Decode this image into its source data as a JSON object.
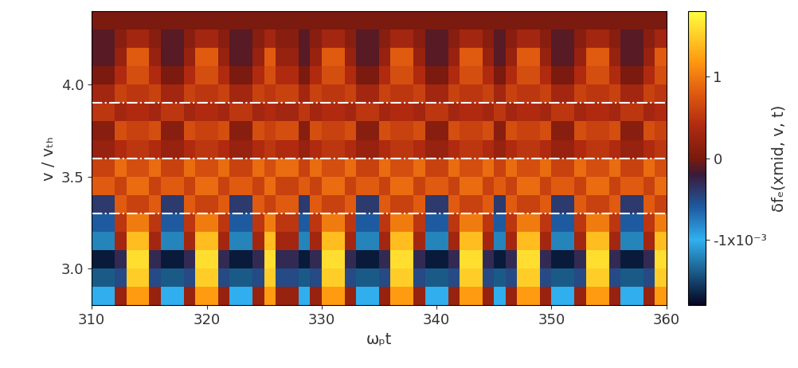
{
  "chart_data": {
    "type": "heatmap",
    "x_label": "ωₚt",
    "y_label": "v / vₜₕ",
    "xlim": [
      310,
      360
    ],
    "ylim": [
      2.8,
      4.4
    ],
    "xticks": [
      310,
      320,
      330,
      340,
      350,
      360
    ],
    "yticks": [
      {
        "value": 3.0,
        "label": "3.0"
      },
      {
        "value": 3.5,
        "label": "3.5"
      },
      {
        "value": 4.0,
        "label": "4.0"
      }
    ],
    "x_edges": [
      310,
      311,
      312,
      313,
      314,
      315,
      316,
      317,
      318,
      319,
      320,
      321,
      322,
      323,
      324,
      325,
      326,
      327,
      328,
      329,
      330,
      331,
      332,
      333,
      334,
      335,
      336,
      337,
      338,
      339,
      340,
      341,
      342,
      343,
      344,
      345,
      346,
      347,
      348,
      349,
      350,
      351,
      352,
      353,
      354,
      355,
      356,
      357,
      358,
      359,
      360
    ],
    "y_edges": [
      2.8,
      2.9,
      3.0,
      3.1,
      3.2,
      3.3,
      3.4,
      3.5,
      3.6,
      3.7,
      3.8,
      3.9,
      4.0,
      4.1,
      4.2,
      4.3,
      4.4
    ],
    "cells": [
      [
        -0.001,
        -0.001,
        0.0002,
        0.0012,
        0.0012,
        0.0002,
        -0.001,
        -0.001,
        0.0002,
        0.0012,
        0.0012,
        0.0002,
        -0.001,
        -0.001,
        0.0002,
        0.0012,
        0.0002,
        0.0002,
        -0.001,
        0.0002,
        0.0012,
        0.0012,
        0.0002,
        -0.001,
        -0.001,
        0.0002,
        0.0012,
        0.0012,
        0.0002,
        -0.001,
        -0.001,
        0.0002,
        0.0012,
        0.0012,
        0.0002,
        -0.001,
        0.0002,
        0.0012,
        0.0012,
        0.0002,
        -0.001,
        -0.001,
        0.0002,
        0.0012,
        0.0012,
        0.0002,
        -0.001,
        -0.001,
        0.0002,
        0.0012
      ],
      [
        -0.0014,
        -0.0014,
        -0.0005,
        0.0015,
        0.0015,
        -0.0005,
        -0.0014,
        -0.0014,
        -0.0005,
        0.0015,
        0.0015,
        -0.0005,
        -0.0014,
        -0.0014,
        -0.0005,
        0.0015,
        -0.0005,
        -0.0005,
        -0.0014,
        -0.0005,
        0.0015,
        0.0015,
        -0.0005,
        -0.0014,
        -0.0014,
        -0.0005,
        0.0015,
        0.0015,
        -0.0005,
        -0.0014,
        -0.0014,
        -0.0005,
        0.0015,
        0.0015,
        -0.0005,
        -0.0014,
        -0.0005,
        0.0015,
        0.0015,
        -0.0005,
        -0.0014,
        -0.0014,
        -0.0005,
        0.0015,
        0.0015,
        -0.0005,
        -0.0014,
        -0.0014,
        -0.0005,
        0.0015
      ],
      [
        -0.0017,
        -0.0017,
        -0.0003,
        0.0016,
        0.0016,
        -0.0003,
        -0.0017,
        -0.0017,
        -0.0003,
        0.0016,
        0.0016,
        -0.0003,
        -0.0017,
        -0.0017,
        -0.0003,
        0.0016,
        -0.0003,
        -0.0003,
        -0.0017,
        -0.0003,
        0.0016,
        0.0016,
        -0.0003,
        -0.0017,
        -0.0017,
        -0.0003,
        0.0016,
        0.0016,
        -0.0003,
        -0.0017,
        -0.0017,
        -0.0003,
        0.0016,
        0.0016,
        -0.0003,
        -0.0017,
        -0.0003,
        0.0016,
        0.0016,
        -0.0003,
        -0.0017,
        -0.0017,
        -0.0003,
        0.0016,
        0.0016,
        -0.0003,
        -0.0017,
        -0.0017,
        -0.0003,
        0.0016
      ],
      [
        -0.0012,
        -0.0012,
        0.0003,
        0.0014,
        0.0014,
        0.0003,
        -0.0012,
        -0.0012,
        0.0003,
        0.0014,
        0.0014,
        0.0003,
        -0.0012,
        -0.0012,
        0.0003,
        0.0014,
        0.0003,
        0.0003,
        -0.0012,
        0.0003,
        0.0014,
        0.0014,
        0.0003,
        -0.0012,
        -0.0012,
        0.0003,
        0.0014,
        0.0014,
        0.0003,
        -0.0012,
        -0.0012,
        0.0003,
        0.0014,
        0.0014,
        0.0003,
        -0.0012,
        0.0003,
        0.0014,
        0.0014,
        0.0003,
        -0.0012,
        -0.0012,
        0.0003,
        0.0014,
        0.0014,
        0.0003,
        -0.0012,
        -0.0012,
        0.0003,
        0.0014
      ],
      [
        -0.0006,
        -0.0006,
        0.0005,
        0.001,
        0.001,
        0.0005,
        -0.0006,
        -0.0006,
        0.0005,
        0.001,
        0.001,
        0.0005,
        -0.0006,
        -0.0006,
        0.0005,
        0.001,
        0.0005,
        0.0005,
        -0.0006,
        0.0005,
        0.001,
        0.001,
        0.0005,
        -0.0006,
        -0.0006,
        0.0005,
        0.001,
        0.001,
        0.0005,
        -0.0006,
        -0.0006,
        0.0005,
        0.001,
        0.001,
        0.0005,
        -0.0006,
        0.0005,
        0.001,
        0.001,
        0.0005,
        -0.0006,
        -0.0006,
        0.0005,
        0.001,
        0.001,
        0.0005,
        -0.0006,
        -0.0006,
        0.0005,
        0.001
      ],
      [
        -0.0004,
        -0.0004,
        0.0008,
        0.0006,
        0.0006,
        0.0008,
        -0.0004,
        -0.0004,
        0.0008,
        0.0006,
        0.0006,
        0.0008,
        -0.0004,
        -0.0004,
        0.0008,
        0.0006,
        0.0008,
        0.0008,
        -0.0004,
        0.0008,
        0.0006,
        0.0006,
        0.0008,
        -0.0004,
        -0.0004,
        0.0008,
        0.0006,
        0.0006,
        0.0008,
        -0.0004,
        -0.0004,
        0.0008,
        0.0006,
        0.0006,
        0.0008,
        -0.0004,
        0.0008,
        0.0006,
        0.0006,
        0.0008,
        -0.0004,
        -0.0004,
        0.0008,
        0.0006,
        0.0006,
        0.0008,
        -0.0004,
        -0.0004,
        0.0008,
        0.0006
      ],
      [
        0.0008,
        0.0008,
        0.0006,
        0.0009,
        0.0009,
        0.0006,
        0.0008,
        0.0008,
        0.0006,
        0.0009,
        0.0009,
        0.0006,
        0.0008,
        0.0008,
        0.0006,
        0.0009,
        0.0006,
        0.0006,
        0.0008,
        0.0006,
        0.0009,
        0.0009,
        0.0006,
        0.0008,
        0.0008,
        0.0006,
        0.0009,
        0.0009,
        0.0006,
        0.0008,
        0.0008,
        0.0006,
        0.0009,
        0.0009,
        0.0006,
        0.0008,
        0.0006,
        0.0009,
        0.0009,
        0.0006,
        0.0008,
        0.0008,
        0.0006,
        0.0009,
        0.0009,
        0.0006,
        0.0008,
        0.0008,
        0.0006,
        0.0009
      ],
      [
        0.0006,
        0.0006,
        0.0009,
        0.0007,
        0.0007,
        0.0009,
        0.0006,
        0.0006,
        0.0009,
        0.0007,
        0.0007,
        0.0009,
        0.0006,
        0.0006,
        0.0009,
        0.0007,
        0.0009,
        0.0009,
        0.0006,
        0.0009,
        0.0007,
        0.0007,
        0.0009,
        0.0006,
        0.0006,
        0.0009,
        0.0007,
        0.0007,
        0.0009,
        0.0006,
        0.0006,
        0.0009,
        0.0007,
        0.0007,
        0.0009,
        0.0006,
        0.0009,
        0.0007,
        0.0007,
        0.0009,
        0.0006,
        0.0006,
        0.0009,
        0.0007,
        0.0007,
        0.0009,
        0.0006,
        0.0006,
        0.0009,
        0.0007
      ],
      [
        0.0002,
        0.0002,
        0.0004,
        0.0005,
        0.0005,
        0.0004,
        0.0002,
        0.0002,
        0.0004,
        0.0005,
        0.0005,
        0.0004,
        0.0002,
        0.0002,
        0.0004,
        0.0005,
        0.0004,
        0.0004,
        0.0002,
        0.0004,
        0.0005,
        0.0005,
        0.0004,
        0.0002,
        0.0002,
        0.0004,
        0.0005,
        0.0005,
        0.0004,
        0.0002,
        0.0002,
        0.0004,
        0.0005,
        0.0005,
        0.0004,
        0.0002,
        0.0004,
        0.0005,
        0.0005,
        0.0004,
        0.0002,
        0.0002,
        0.0004,
        0.0005,
        0.0005,
        0.0004,
        0.0002,
        0.0002,
        0.0004,
        0.0005
      ],
      [
        0.0001,
        0.0001,
        0.0007,
        0.0006,
        0.0006,
        0.0007,
        0.0001,
        0.0001,
        0.0007,
        0.0006,
        0.0006,
        0.0007,
        0.0001,
        0.0001,
        0.0007,
        0.0006,
        0.0007,
        0.0007,
        0.0001,
        0.0007,
        0.0006,
        0.0006,
        0.0007,
        0.0001,
        0.0001,
        0.0007,
        0.0006,
        0.0006,
        0.0007,
        0.0001,
        0.0001,
        0.0007,
        0.0006,
        0.0006,
        0.0007,
        0.0001,
        0.0007,
        0.0006,
        0.0006,
        0.0007,
        0.0001,
        0.0001,
        0.0007,
        0.0006,
        0.0006,
        0.0007,
        0.0001,
        0.0001,
        0.0007,
        0.0006
      ],
      [
        0.0005,
        0.0005,
        0.0003,
        0.0004,
        0.0004,
        0.0003,
        0.0005,
        0.0005,
        0.0003,
        0.0004,
        0.0004,
        0.0003,
        0.0005,
        0.0005,
        0.0003,
        0.0004,
        0.0003,
        0.0003,
        0.0005,
        0.0003,
        0.0004,
        0.0004,
        0.0003,
        0.0005,
        0.0005,
        0.0003,
        0.0004,
        0.0004,
        0.0003,
        0.0005,
        0.0005,
        0.0003,
        0.0004,
        0.0004,
        0.0003,
        0.0005,
        0.0003,
        0.0004,
        0.0004,
        0.0003,
        0.0005,
        0.0005,
        0.0003,
        0.0004,
        0.0004,
        0.0003,
        0.0005,
        0.0005,
        0.0003,
        0.0004
      ],
      [
        0.0003,
        0.0003,
        0.0006,
        0.0005,
        0.0005,
        0.0006,
        0.0003,
        0.0003,
        0.0006,
        0.0005,
        0.0005,
        0.0006,
        0.0003,
        0.0003,
        0.0006,
        0.0005,
        0.0006,
        0.0006,
        0.0003,
        0.0006,
        0.0005,
        0.0005,
        0.0006,
        0.0003,
        0.0003,
        0.0006,
        0.0005,
        0.0005,
        0.0006,
        0.0003,
        0.0003,
        0.0006,
        0.0005,
        0.0005,
        0.0006,
        0.0003,
        0.0006,
        0.0005,
        0.0005,
        0.0006,
        0.0003,
        0.0003,
        0.0006,
        0.0005,
        0.0005,
        0.0006,
        0.0003,
        0.0003,
        0.0006,
        0.0005
      ],
      [
        0,
        0,
        0.0004,
        0.0007,
        0.0007,
        0.0004,
        0,
        0,
        0.0004,
        0.0007,
        0.0007,
        0.0004,
        0,
        0,
        0.0004,
        0.0007,
        0.0004,
        0.0004,
        0,
        0.0004,
        0.0007,
        0.0007,
        0.0004,
        0,
        0,
        0.0004,
        0.0007,
        0.0007,
        0.0004,
        0,
        0,
        0.0004,
        0.0007,
        0.0007,
        0.0004,
        0,
        0.0004,
        0.0007,
        0.0007,
        0.0004,
        0,
        0,
        0.0004,
        0.0007,
        0.0007,
        0.0004,
        0,
        0,
        0.0004,
        0.0007
      ],
      [
        -0.0001,
        -0.0001,
        0.0002,
        0.0008,
        0.0008,
        0.0002,
        -0.0001,
        -0.0001,
        0.0002,
        0.0008,
        0.0008,
        0.0002,
        -0.0001,
        -0.0001,
        0.0002,
        0.0008,
        0.0002,
        0.0002,
        -0.0001,
        0.0002,
        0.0008,
        0.0008,
        0.0002,
        -0.0001,
        -0.0001,
        0.0002,
        0.0008,
        0.0008,
        0.0002,
        -0.0001,
        -0.0001,
        0.0002,
        0.0008,
        0.0008,
        0.0002,
        -0.0001,
        0.0002,
        0.0008,
        0.0008,
        0.0002,
        -0.0001,
        -0.0001,
        0.0002,
        0.0008,
        0.0008,
        0.0002,
        -0.0001,
        -0.0001,
        0.0002,
        0.0008
      ],
      [
        -0.0001,
        -0.0001,
        0.0001,
        0.0003,
        0.0003,
        0.0001,
        -0.0001,
        -0.0001,
        0.0001,
        0.0003,
        0.0003,
        0.0001,
        -0.0001,
        -0.0001,
        0.0001,
        0.0003,
        0.0001,
        0.0001,
        -0.0001,
        0.0001,
        0.0003,
        0.0003,
        0.0001,
        -0.0001,
        -0.0001,
        0.0001,
        0.0003,
        0.0003,
        0.0001,
        -0.0001,
        -0.0001,
        0.0001,
        0.0003,
        0.0003,
        0.0001,
        -0.0001,
        0.0001,
        0.0003,
        0.0003,
        0.0001,
        -0.0001,
        -0.0001,
        0.0001,
        0.0003,
        0.0003,
        0.0001,
        -0.0001,
        -0.0001,
        0.0001,
        0.0003
      ],
      [
        0,
        0,
        0,
        0,
        0,
        0,
        0,
        0,
        0,
        0,
        0,
        0,
        0,
        0,
        0,
        0,
        0,
        0,
        0,
        0,
        0,
        0,
        0,
        0,
        0,
        0,
        0,
        0,
        0,
        0,
        0,
        0,
        0,
        0,
        0,
        0,
        0,
        0,
        0,
        0,
        0,
        0,
        0,
        0,
        0,
        0,
        0,
        0,
        0,
        0
      ]
    ],
    "colorbar": {
      "label": "δfₑ(xmid, v, t)",
      "range": [
        -0.0018,
        0.0018
      ],
      "ticks": [
        {
          "value": 0.001,
          "label": "1"
        },
        {
          "value": 0,
          "label": "0"
        },
        {
          "value": -0.001,
          "label": "-1x10⁻³"
        }
      ]
    },
    "hlines": {
      "values": [
        3.3,
        3.6,
        3.9
      ],
      "color": "#ffffff",
      "line_style": "dashdot"
    }
  }
}
